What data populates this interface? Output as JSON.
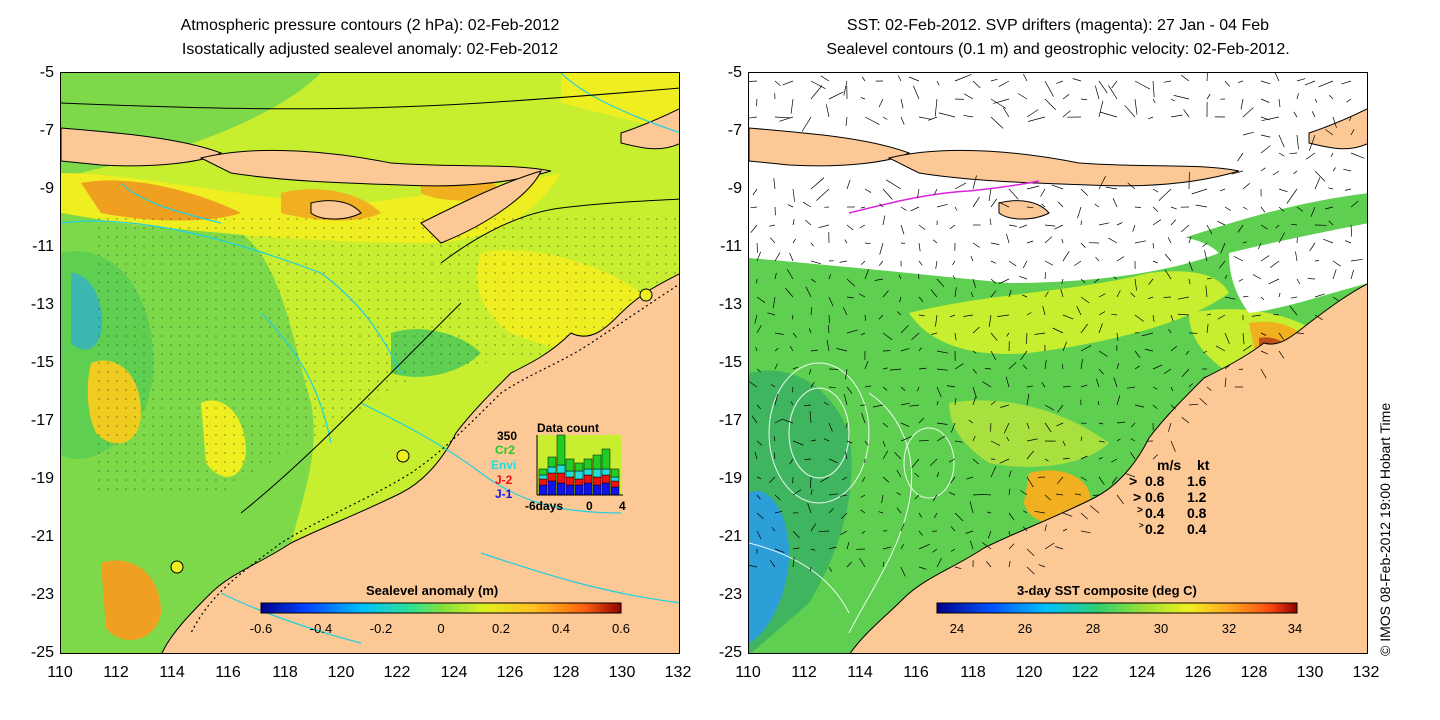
{
  "left_panel": {
    "title_line1": "Atmospheric pressure contours (2 hPa): 02-Feb-2012",
    "title_line2": "Isostatically adjusted sealevel anomaly: 02-Feb-2012",
    "colorbar_label": "Sealevel anomaly (m)",
    "colorbar_ticks": [
      "-0.6",
      "-0.4",
      "-0.2",
      "0",
      "0.2",
      "0.4",
      "0.6"
    ],
    "data_count": {
      "title": "Data count",
      "max_label": "350",
      "sources": [
        {
          "name": "Cr2",
          "color": "#22cc22"
        },
        {
          "name": "Envi",
          "color": "#22dddd"
        },
        {
          "name": "J-2",
          "color": "#ee1111"
        },
        {
          "name": "J-1",
          "color": "#1111ee"
        }
      ],
      "x_labels": [
        "-6days",
        "0",
        "4"
      ]
    }
  },
  "right_panel": {
    "title_line1": "SST: 02-Feb-2012. SVP drifters (magenta): 27 Jan - 04 Feb",
    "title_line2": "Sealevel contours (0.1 m) and geostrophic velocity: 02-Feb-2012.",
    "colorbar_label": "3-day SST composite (deg C)",
    "colorbar_ticks": [
      "24",
      "26",
      "28",
      "30",
      "32",
      "34"
    ],
    "speed_legend": {
      "header_ms": "m/s",
      "header_kt": "kt",
      "rows": [
        {
          "ms": "0.8",
          "kt": "1.6"
        },
        {
          "ms": "0.6",
          "kt": "1.2"
        },
        {
          "ms": "0.4",
          "kt": "0.8"
        },
        {
          "ms": "0.2",
          "kt": "0.4"
        }
      ]
    }
  },
  "axes": {
    "y_ticks": [
      "-5",
      "-7",
      "-9",
      "-11",
      "-13",
      "-15",
      "-17",
      "-19",
      "-21",
      "-23",
      "-25"
    ],
    "x_ticks": [
      "110",
      "112",
      "114",
      "116",
      "118",
      "120",
      "122",
      "124",
      "126",
      "128",
      "130",
      "132"
    ]
  },
  "credit": "© IMOS 08-Feb-2012 19:00 Hobart Time",
  "colors": {
    "land": "#fbc896",
    "sea_green": "#5ecf50",
    "sea_yellowgreen": "#c8ee30",
    "sea_yellow": "#eeee20",
    "sea_orange": "#f0a020",
    "contour_cyan": "#20d0e0",
    "drifter_magenta": "#dd22dd"
  }
}
